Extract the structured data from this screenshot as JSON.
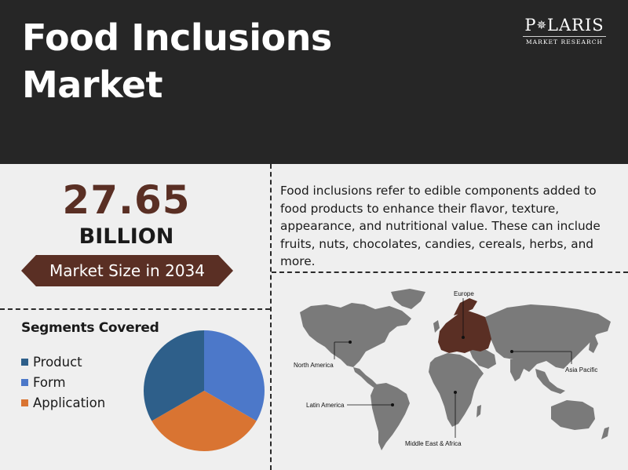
{
  "header": {
    "title_line1": "Food Inclusions",
    "title_line2": "Market"
  },
  "logo": {
    "word_pre": "P",
    "word_post": "LARIS",
    "subtitle": "MARKET RESEARCH"
  },
  "market_size": {
    "value": "27.65",
    "unit": "BILLION",
    "label": "Market Size in 2034"
  },
  "description": "Food inclusions refer to edible components added to food products to enhance their flavor, texture, appearance, and nutritional value. These can include fruits, nuts, chocolates, candies, cereals, herbs, and more.",
  "segments": {
    "title": "Segments Covered"
  },
  "chart_data": {
    "type": "pie",
    "categories": [
      "Product",
      "Form",
      "Application"
    ],
    "values": [
      33.33,
      33.33,
      33.34
    ],
    "colors": [
      "#2e5f8a",
      "#4c78c9",
      "#d97432"
    ],
    "legend_position": "left"
  },
  "regions": {
    "europe": "Europe",
    "north_america": "North America",
    "asia_pacific": "Asia Pacific",
    "latin_america": "Latin America",
    "middle_east_africa": "Middle East & Africa"
  },
  "colors": {
    "header_bg": "#262626",
    "accent": "#5a2f24",
    "map_land": "#7a7a7a",
    "map_highlight": "#5a2f24",
    "page_bg": "#efefef"
  }
}
